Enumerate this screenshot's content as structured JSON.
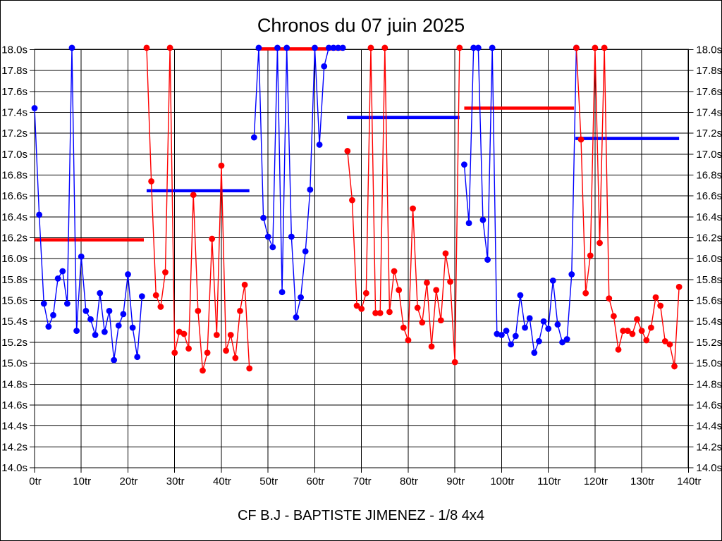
{
  "title": "Chronos du 07 juin 2025",
  "caption": "CF B.J - BAPTISTE JIMENEZ - 1/8 4x4",
  "colors": {
    "blue_series": "#0000ff",
    "red_series": "#ff0000",
    "grid": "#000000",
    "background": "#ffffff",
    "text": "#000000"
  },
  "chart_data": {
    "type": "line",
    "title": "Chronos du 07 juin 2025",
    "x_unit": "tr",
    "y_unit": "s",
    "xlim": [
      0,
      140
    ],
    "ylim": [
      14.0,
      18.0
    ],
    "y_step": 0.2,
    "x_step": 10,
    "grid": true,
    "clip_max": 18.0,
    "x_tick_labels": [
      "0tr",
      "10tr",
      "20tr",
      "30tr",
      "40tr",
      "50tr",
      "60tr",
      "70tr",
      "80tr",
      "90tr",
      "100tr",
      "110tr",
      "120tr",
      "130tr",
      "140tr"
    ],
    "y_tick_labels": [
      "18.0s",
      "17.8s",
      "17.6s",
      "17.4s",
      "17.2s",
      "17.0s",
      "16.8s",
      "16.6s",
      "16.4s",
      "16.2s",
      "16.0s",
      "15.8s",
      "15.6s",
      "15.4s",
      "15.2s",
      "15.0s",
      "14.8s",
      "14.6s",
      "14.4s",
      "14.2s",
      "14.0s"
    ],
    "y_labels_on_both_sides": true,
    "series": [
      {
        "name": "run-1-blue",
        "color": "#0000ff",
        "start_lap": 0,
        "laps": [
          17.44,
          16.42,
          15.57,
          15.35,
          15.46,
          15.81,
          15.88,
          15.57,
          18.0,
          15.31,
          16.02,
          15.5,
          15.42,
          15.27,
          15.67,
          15.3,
          15.5,
          15.03,
          15.36,
          15.47,
          15.85,
          15.34,
          15.06,
          15.64
        ]
      },
      {
        "name": "run-2-red",
        "color": "#ff0000",
        "start_lap": 24,
        "laps": [
          18.0,
          16.74,
          15.65,
          15.54,
          15.87,
          18.0,
          15.1,
          15.3,
          15.28,
          15.14,
          16.61,
          15.5,
          14.93,
          15.1,
          16.19,
          15.27,
          16.89,
          15.12,
          15.27,
          15.05,
          15.5,
          15.75,
          14.95
        ]
      },
      {
        "name": "run-3-blue",
        "color": "#0000ff",
        "start_lap": 47,
        "laps": [
          17.16,
          18.0,
          16.39,
          16.21,
          16.11,
          18.0,
          15.68,
          18.0,
          16.21,
          15.44,
          15.63,
          16.07,
          16.66,
          18.0,
          17.09,
          17.84,
          18.0,
          18.0,
          18.0,
          18.0
        ]
      },
      {
        "name": "run-4-red",
        "color": "#ff0000",
        "start_lap": 67,
        "laps": [
          17.03,
          16.56,
          15.55,
          15.52,
          15.67,
          18.0,
          15.48,
          15.48,
          18.0,
          15.49,
          15.88,
          15.7,
          15.34,
          15.22,
          16.48,
          15.53,
          15.39,
          15.77,
          15.16,
          15.7,
          15.41,
          16.05,
          15.78,
          15.01,
          18.0
        ]
      },
      {
        "name": "run-5-blue",
        "color": "#0000ff",
        "start_lap": 92,
        "laps": [
          16.9,
          16.34,
          18.0,
          18.0,
          16.37,
          15.99,
          18.0,
          15.28,
          15.27,
          15.31,
          15.18,
          15.26,
          15.65,
          15.34,
          15.43,
          15.1,
          15.21,
          15.4,
          15.33,
          15.79,
          15.37,
          15.2,
          15.23,
          15.85,
          18.0
        ]
      },
      {
        "name": "run-6-red",
        "color": "#ff0000",
        "start_lap": 116,
        "laps": [
          18.0,
          17.14,
          15.67,
          16.03,
          18.0,
          16.15,
          18.0,
          15.62,
          15.45,
          15.13,
          15.31,
          15.31,
          15.28,
          15.42,
          15.31,
          15.22,
          15.34,
          15.63,
          15.55,
          15.21,
          15.18,
          14.97,
          15.73
        ]
      }
    ],
    "average_lines": [
      {
        "name": "avg-run-1",
        "color": "#ff0000",
        "value": 16.18,
        "from_lap": 0,
        "to_lap": 23.4
      },
      {
        "name": "avg-run-2",
        "color": "#0000ff",
        "value": 16.65,
        "from_lap": 24,
        "to_lap": 46
      },
      {
        "name": "avg-run-3",
        "color": "#ff0000",
        "value": 18.0,
        "from_lap": 47.5,
        "to_lap": 66.3
      },
      {
        "name": "avg-run-4",
        "color": "#0000ff",
        "value": 17.35,
        "from_lap": 66.9,
        "to_lap": 91
      },
      {
        "name": "avg-run-5",
        "color": "#ff0000",
        "value": 17.44,
        "from_lap": 92,
        "to_lap": 115.5
      },
      {
        "name": "avg-run-6",
        "color": "#0000ff",
        "value": 17.15,
        "from_lap": 115.8,
        "to_lap": 138
      }
    ]
  }
}
